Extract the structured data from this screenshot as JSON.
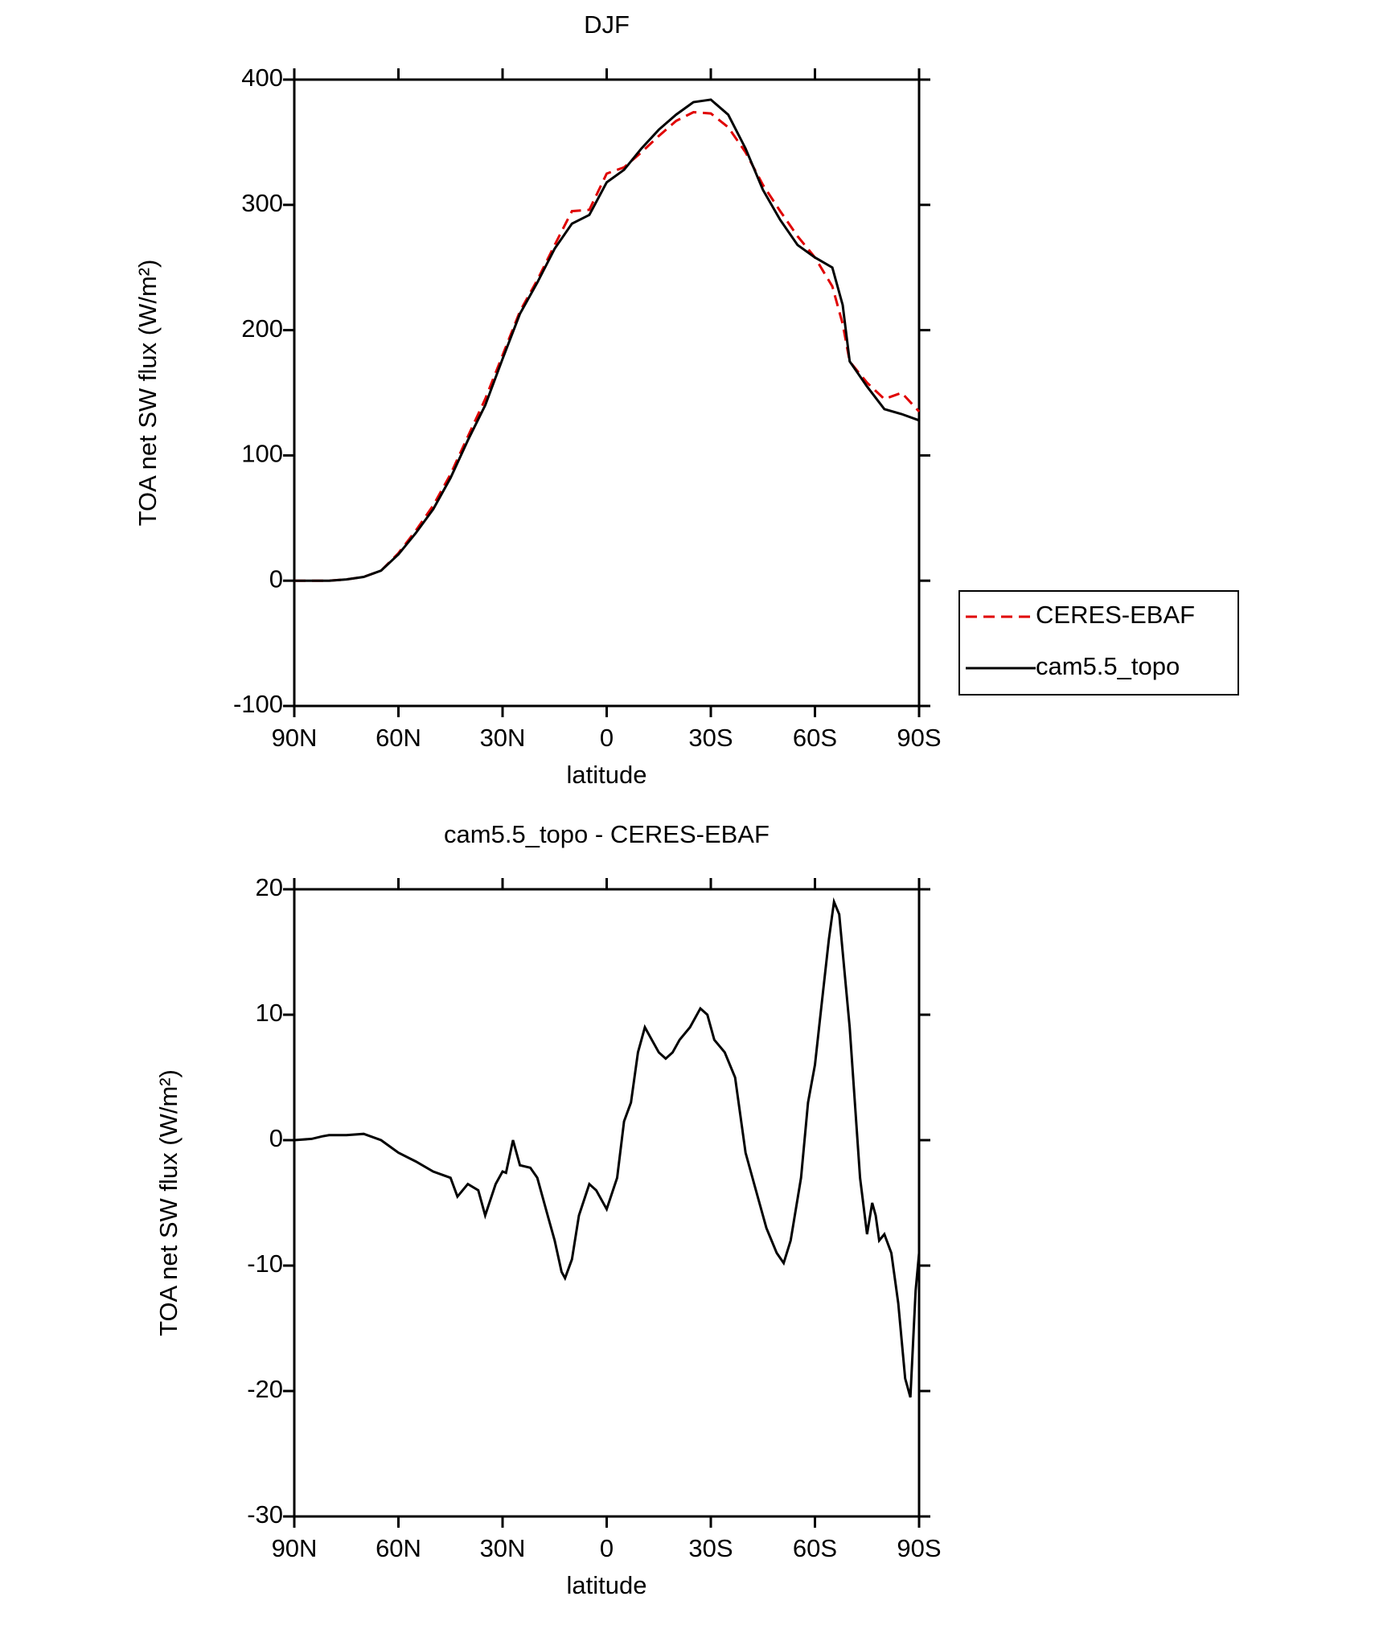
{
  "chart_data": [
    {
      "type": "line",
      "title": "DJF",
      "x_label": "latitude",
      "y_label": "TOA net SW flux (W/m²)",
      "x": [
        90,
        85,
        80,
        75,
        70,
        65,
        60,
        55,
        50,
        45,
        40,
        35,
        30,
        25,
        20,
        15,
        10,
        5,
        0,
        -5,
        -10,
        -15,
        -20,
        -25,
        -30,
        -35,
        -40,
        -45,
        -50,
        -55,
        -60,
        -65,
        -68,
        -70,
        -75,
        -80,
        -85,
        -90
      ],
      "series": [
        {
          "name": "CERES-EBAF",
          "color": "#e00000",
          "line_style": "dashed",
          "values": [
            0,
            0,
            0,
            1,
            3,
            8,
            22,
            40,
            60,
            85,
            115,
            145,
            180,
            215,
            240,
            268,
            295,
            296,
            325,
            330,
            342,
            355,
            367,
            374,
            373,
            362,
            342,
            316,
            295,
            275,
            258,
            235,
            205,
            175,
            158,
            145,
            150,
            135
          ]
        },
        {
          "name": "cam5.5_topo",
          "color": "#000000",
          "line_style": "solid",
          "values": [
            0,
            0,
            0,
            1,
            3,
            8,
            21,
            38,
            57,
            82,
            112,
            140,
            177,
            213,
            238,
            265,
            285,
            292,
            318,
            328,
            345,
            360,
            372,
            382,
            384,
            372,
            345,
            312,
            288,
            268,
            258,
            250,
            220,
            175,
            155,
            137,
            133,
            128
          ]
        }
      ],
      "xlim": [
        90,
        -90
      ],
      "xticks": [
        {
          "value": 90,
          "label": "90N"
        },
        {
          "value": 60,
          "label": "60N"
        },
        {
          "value": 30,
          "label": "30N"
        },
        0,
        {
          "value": -30,
          "label": "30S"
        },
        {
          "value": -60,
          "label": "60S"
        },
        {
          "value": -90,
          "label": "90S"
        }
      ],
      "ylim": [
        -100,
        400
      ],
      "yticks": [
        -100,
        0,
        100,
        200,
        300,
        400
      ],
      "legend": "right"
    },
    {
      "type": "line",
      "title": "cam5.5_topo - CERES-EBAF",
      "x_label": "latitude",
      "y_label": "TOA net SW flux (W/m²)",
      "x": [
        90,
        85,
        82,
        80,
        75,
        70,
        65,
        60,
        55,
        50,
        47,
        45,
        43,
        40,
        37,
        35,
        32,
        30,
        29,
        27,
        25,
        22,
        20,
        17,
        15,
        13,
        12,
        10,
        8,
        5,
        3,
        0,
        -3,
        -5,
        -7,
        -9,
        -11,
        -13,
        -15,
        -17,
        -19,
        -21,
        -24,
        -27,
        -29,
        -31,
        -34,
        -37,
        -40,
        -43,
        -46,
        -49,
        -51,
        -53,
        -56,
        -58,
        -60,
        -62,
        -64,
        -65.5,
        -67,
        -68,
        -70,
        -72,
        -73,
        -75,
        -76.5,
        -77.5,
        -78.5,
        -80,
        -82,
        -84,
        -86,
        -87.5,
        -89,
        -90
      ],
      "series": [
        {
          "name": "cam5.5_topo - CERES-EBAF",
          "color": "#000000",
          "line_style": "solid",
          "values": [
            0,
            0.1,
            0.3,
            0.4,
            0.4,
            0.5,
            0,
            -1,
            -1.7,
            -2.5,
            -2.8,
            -3,
            -4.5,
            -3.5,
            -4,
            -6,
            -3.5,
            -2.5,
            -2.6,
            0,
            -2,
            -2.2,
            -3,
            -6,
            -8,
            -10.5,
            -11,
            -9.5,
            -6,
            -3.5,
            -4,
            -5.5,
            -3,
            1.5,
            3,
            7,
            9,
            8,
            7,
            6.5,
            7,
            8,
            9,
            10.5,
            10,
            8,
            7,
            5,
            -1,
            -4,
            -7,
            -9,
            -9.8,
            -8,
            -3,
            3,
            6,
            11,
            16,
            19,
            18,
            15,
            9,
            1,
            -3,
            -7.5,
            -5,
            -6,
            -8,
            -7.5,
            -9,
            -13,
            -19,
            -20.5,
            -12,
            -9
          ]
        }
      ],
      "xlim": [
        90,
        -90
      ],
      "xticks": [
        {
          "value": 90,
          "label": "90N"
        },
        {
          "value": 60,
          "label": "60N"
        },
        {
          "value": 30,
          "label": "30N"
        },
        0,
        {
          "value": -30,
          "label": "30S"
        },
        {
          "value": -60,
          "label": "60S"
        },
        {
          "value": -90,
          "label": "90S"
        }
      ],
      "ylim": [
        -30,
        20
      ],
      "yticks": [
        -30,
        -20,
        -10,
        0,
        10,
        20
      ]
    }
  ]
}
